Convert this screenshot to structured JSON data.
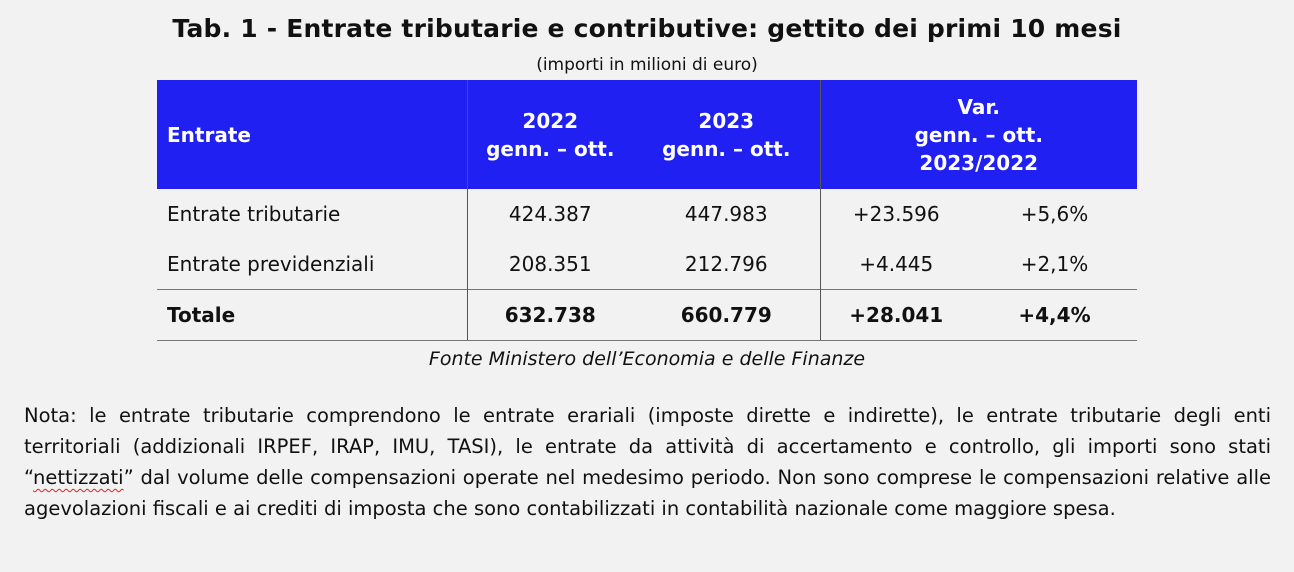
{
  "title": "Tab. 1 - Entrate tributarie e contributive: gettito dei primi 10 mesi",
  "subtitle": "(importi in milioni di euro)",
  "table": {
    "header": {
      "col0": "Entrate",
      "col1_line1": "2022",
      "col1_line2": "genn. – ott.",
      "col2_line1": "2023",
      "col2_line2": "genn. – ott.",
      "col3_line1": "Var.",
      "col3_line2": "genn. – ott.",
      "col3_line3": "2023/2022"
    },
    "rows": [
      {
        "label": "Entrate tributarie",
        "v2022": "424.387",
        "v2023": "447.983",
        "var_abs": "+23.596",
        "var_pct": "+5,6%"
      },
      {
        "label": "Entrate previdenziali",
        "v2022": "208.351",
        "v2023": "212.796",
        "var_abs": "+4.445",
        "var_pct": "+2,1%"
      }
    ],
    "total": {
      "label": "Totale",
      "v2022": "632.738",
      "v2023": "660.779",
      "var_abs": "+28.041",
      "var_pct": "+4,4%"
    }
  },
  "fonte": "Fonte Ministero dell’Economia e delle Finanze",
  "nota": {
    "part1": "Nota: le entrate tributarie comprendono le entrate erariali (imposte dirette e indirette), le entrate tributarie degli enti territoriali (addizionali IRPEF, IRAP, IMU, TASI), le entrate da attività di accertamento e controllo, gli importi sono stati “",
    "flagged_word": "nettizzati",
    "part2": "” dal volume delle compensazioni operate nel medesimo periodo. Non sono comprese le compensazioni relative alle agevolazioni fiscali e ai crediti di imposta che sono contabilizzati in contabilità nazionale come maggiore spesa."
  },
  "colors": {
    "header_bg": "#2020f2",
    "header_text": "#ffffff",
    "page_bg": "#f2f2f2",
    "spellcheck_underline": "#dd2222"
  }
}
